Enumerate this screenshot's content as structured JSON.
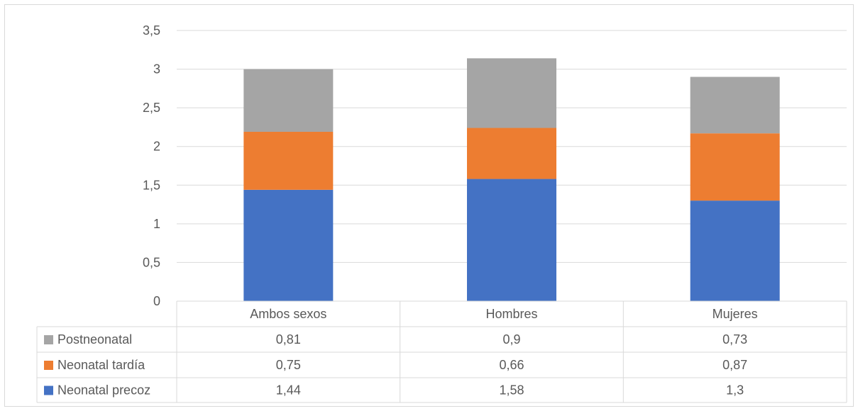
{
  "chart_data": {
    "type": "bar",
    "stacked": true,
    "categories": [
      "Ambos sexos",
      "Hombres",
      "Mujeres"
    ],
    "series": [
      {
        "name": "Neonatal precoz",
        "values": [
          1.44,
          1.58,
          1.3
        ],
        "labels": [
          "1,44",
          "1,58",
          "1,3"
        ],
        "color": "#4472c4"
      },
      {
        "name": "Neonatal tardía",
        "values": [
          0.75,
          0.66,
          0.87
        ],
        "labels": [
          "0,75",
          "0,66",
          "0,87"
        ],
        "color": "#ed7d31"
      },
      {
        "name": "Postneonatal",
        "values": [
          0.81,
          0.9,
          0.73
        ],
        "labels": [
          "0,81",
          "0,9",
          "0,73"
        ],
        "color": "#a5a5a5"
      }
    ],
    "yticks": [
      0,
      0.5,
      1,
      1.5,
      2,
      2.5,
      3,
      3.5
    ],
    "ytick_labels": [
      "0",
      "0,5",
      "1",
      "1,5",
      "2",
      "2,5",
      "3",
      "3,5"
    ],
    "ylim": [
      0,
      3.5
    ],
    "grid": true,
    "legend": "data-table",
    "title": "",
    "xlabel": "",
    "ylabel": ""
  }
}
